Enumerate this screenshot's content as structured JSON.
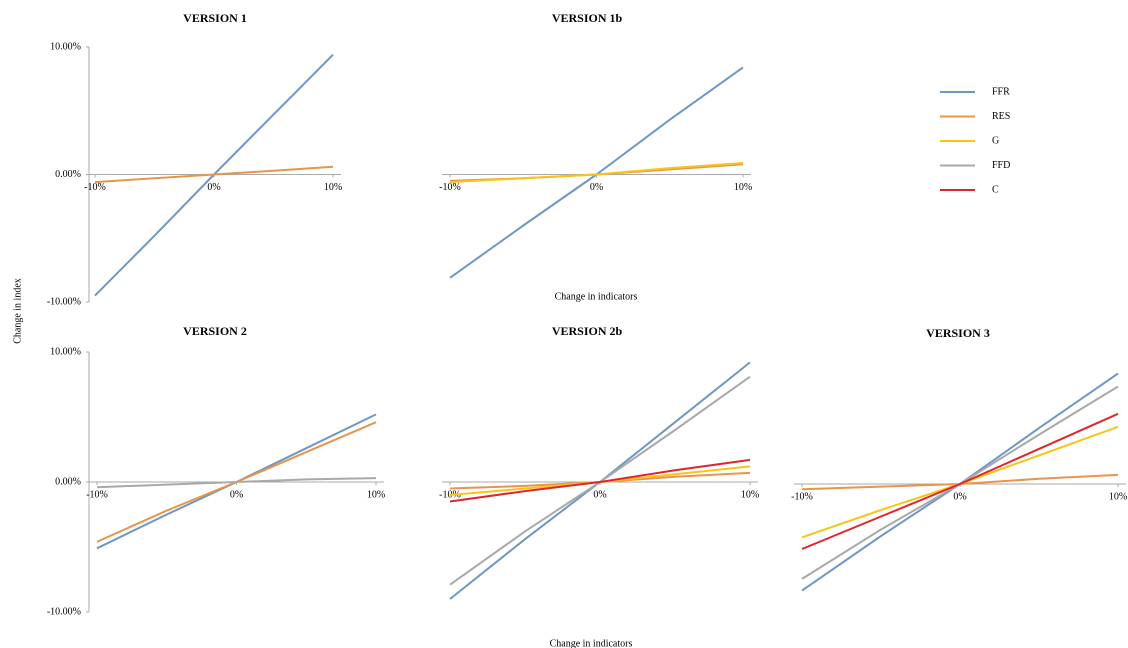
{
  "chart_data": [
    {
      "type": "line",
      "title": "VERSION 1",
      "ylabel": "Change in index",
      "x": [
        -10,
        -5,
        0,
        5,
        10
      ],
      "xlim": [
        -10,
        10
      ],
      "ylim": [
        -10,
        10
      ],
      "xticks": [
        {
          "value": -10,
          "label": "-10%"
        },
        {
          "value": 0,
          "label": "0%"
        },
        {
          "value": 10,
          "label": "10%"
        }
      ],
      "yticks": [
        {
          "value": -10,
          "label": "-10.00%"
        },
        {
          "value": 0,
          "label": "0.00%"
        },
        {
          "value": 10,
          "label": "10.00%"
        }
      ],
      "series": [
        {
          "name": "FFR",
          "color": "#6f97c3",
          "values": [
            -9.5,
            -4.8,
            0,
            4.7,
            9.4
          ]
        },
        {
          "name": "RES",
          "color": "#e8944a",
          "values": [
            -0.6,
            -0.3,
            0,
            0.3,
            0.6
          ]
        }
      ]
    },
    {
      "type": "line",
      "title": "VERSION 1b",
      "xlabel": "Change in indicators",
      "x": [
        -10,
        -5,
        0,
        5,
        10
      ],
      "xlim": [
        -10,
        10
      ],
      "ylim": [
        -10,
        10
      ],
      "xticks": [
        {
          "value": -10,
          "label": "-10%"
        },
        {
          "value": 0,
          "label": "0%"
        },
        {
          "value": 10,
          "label": "10%"
        }
      ],
      "series": [
        {
          "name": "FFR",
          "color": "#6f97c3",
          "values": [
            -8.1,
            -4.0,
            0,
            4.3,
            8.4
          ]
        },
        {
          "name": "RES",
          "color": "#e8944a",
          "values": [
            -0.5,
            -0.3,
            0,
            0.4,
            0.8
          ]
        },
        {
          "name": "G",
          "color": "#f9c417",
          "values": [
            -0.6,
            -0.3,
            0,
            0.5,
            0.9
          ]
        }
      ]
    },
    {
      "type": "line",
      "title": "VERSION 2",
      "x": [
        -10,
        -5,
        0,
        5,
        10
      ],
      "xlim": [
        -10,
        10
      ],
      "ylim": [
        -10,
        10
      ],
      "xticks": [
        {
          "value": -10,
          "label": "-10%"
        },
        {
          "value": 0,
          "label": "0%"
        },
        {
          "value": 10,
          "label": "10%"
        }
      ],
      "yticks": [
        {
          "value": -10,
          "label": "-10.00%"
        },
        {
          "value": 0,
          "label": "0.00%"
        },
        {
          "value": 10,
          "label": "10.00%"
        }
      ],
      "series": [
        {
          "name": "FFR",
          "color": "#6f97c3",
          "values": [
            -5.1,
            -2.5,
            0,
            2.6,
            5.2
          ]
        },
        {
          "name": "RES",
          "color": "#e8944a",
          "values": [
            -4.6,
            -2.2,
            0,
            2.3,
            4.6
          ]
        },
        {
          "name": "FFD",
          "color": "#a9a9a9",
          "values": [
            -0.4,
            -0.2,
            0,
            0.2,
            0.3
          ]
        }
      ]
    },
    {
      "type": "line",
      "title": "VERSION 2b",
      "xlabel": "Change in indicators",
      "x": [
        -10,
        -5,
        0,
        5,
        10
      ],
      "xlim": [
        -10,
        10
      ],
      "ylim": [
        -10,
        10
      ],
      "xticks": [
        {
          "value": -10,
          "label": "-10%"
        },
        {
          "value": 0,
          "label": "0%"
        },
        {
          "value": 10,
          "label": "10%"
        }
      ],
      "series": [
        {
          "name": "FFR",
          "color": "#6f97c3",
          "values": [
            -9.0,
            -4.4,
            0,
            4.6,
            9.2
          ]
        },
        {
          "name": "RES",
          "color": "#e8944a",
          "values": [
            -0.5,
            -0.3,
            0,
            0.4,
            0.7
          ]
        },
        {
          "name": "G",
          "color": "#f9c417",
          "values": [
            -1.0,
            -0.5,
            0,
            0.6,
            1.2
          ]
        },
        {
          "name": "FFD",
          "color": "#a9a9a9",
          "values": [
            -7.9,
            -3.8,
            0,
            4.0,
            8.1
          ]
        },
        {
          "name": "C",
          "color": "#e0262a",
          "values": [
            -1.5,
            -0.7,
            0,
            0.9,
            1.7
          ]
        }
      ]
    },
    {
      "type": "line",
      "title": "VERSION 3",
      "x": [
        -10,
        -5,
        0,
        5,
        10
      ],
      "xlim": [
        -10,
        10
      ],
      "ylim": [
        -10,
        10
      ],
      "xticks": [
        {
          "value": -10,
          "label": "-10%"
        },
        {
          "value": 0,
          "label": "0%"
        },
        {
          "value": 10,
          "label": "10%"
        }
      ],
      "series": [
        {
          "name": "FFR",
          "color": "#6f97c3",
          "values": [
            -8.2,
            -4.0,
            0,
            4.3,
            8.5
          ]
        },
        {
          "name": "RES",
          "color": "#e8944a",
          "values": [
            -0.4,
            -0.2,
            0,
            0.4,
            0.7
          ]
        },
        {
          "name": "G",
          "color": "#f9c417",
          "values": [
            -4.1,
            -2.0,
            0,
            2.2,
            4.4
          ]
        },
        {
          "name": "FFD",
          "color": "#a9a9a9",
          "values": [
            -7.3,
            -3.5,
            0,
            3.8,
            7.5
          ]
        },
        {
          "name": "C",
          "color": "#e0262a",
          "values": [
            -5.0,
            -2.5,
            0,
            2.7,
            5.4
          ]
        }
      ]
    }
  ]
}
